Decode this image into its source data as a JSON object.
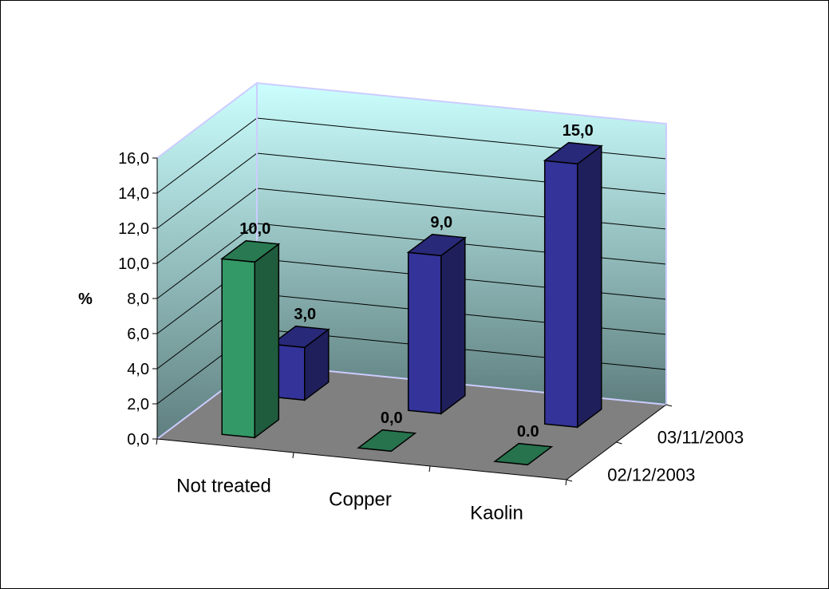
{
  "chart_data": {
    "type": "bar",
    "subtype": "3d-clustered-depth",
    "ylabel": "%",
    "ylim": [
      0,
      16
    ],
    "yticks": [
      "0,0",
      "2,0",
      "4,0",
      "6,0",
      "8,0",
      "10,0",
      "12,0",
      "14,0",
      "16,0"
    ],
    "categories": [
      "Not treated",
      "Copper",
      "Kaolin"
    ],
    "series": [
      {
        "name": "02/12/2003",
        "color": "#339966",
        "values": [
          10,
          0,
          0
        ],
        "labels": [
          "10,0",
          "0,0",
          "0.0"
        ]
      },
      {
        "name": "03/11/2003",
        "color": "#333399",
        "values": [
          3,
          9,
          15
        ],
        "labels": [
          "3,0",
          "9,0",
          "15,0"
        ]
      }
    ],
    "grid": true,
    "wall_colors": [
      "#ccffff",
      "#5f7f7f"
    ],
    "floor_color": "#808080"
  }
}
